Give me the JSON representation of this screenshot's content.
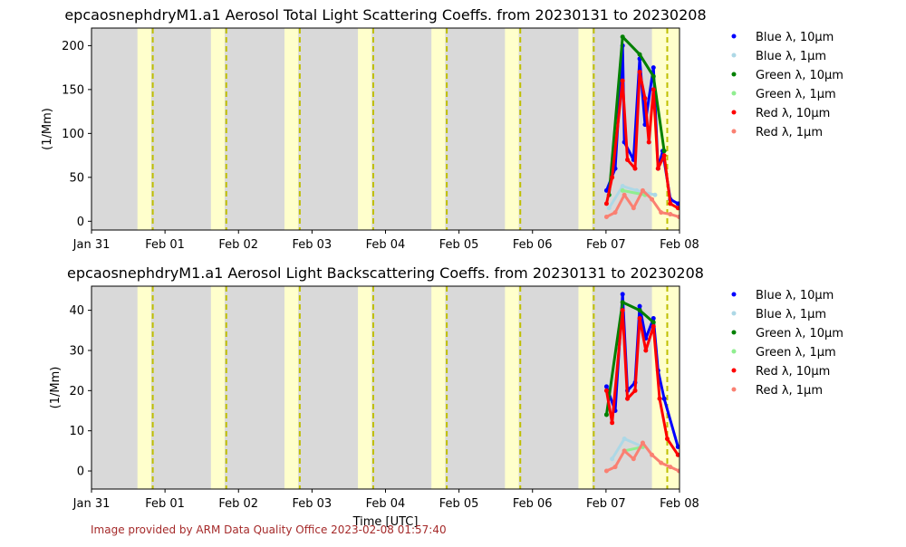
{
  "figure": {
    "credit": "Image provided by ARM Data Quality Office 2023-02-08 01:57:40",
    "xlabel": "Time [UTC]"
  },
  "chart_data": [
    {
      "type": "scatter",
      "title": "epcaosnephdryM1.a1 Aerosol Total Light Scattering Coeffs. from 20230131 to 20230208",
      "xlabel": "",
      "ylabel": "(1/Mm)",
      "x_ticks": [
        "Jan 31",
        "Feb 01",
        "Feb 02",
        "Feb 03",
        "Feb 04",
        "Feb 05",
        "Feb 06",
        "Feb 07",
        "Feb 08"
      ],
      "xlim": [
        "2023-01-31",
        "2023-02-08"
      ],
      "ylim": [
        -10,
        220
      ],
      "y_ticks": [
        0,
        50,
        100,
        150,
        200
      ],
      "legend": "outside-right",
      "series": [
        {
          "name": "Blue λ, 10μm",
          "color": "#0000ff",
          "x": [
            "2023-02-07 00:10",
            "2023-02-07 03:00",
            "2023-02-07 05:25",
            "2023-02-07 06:00",
            "2023-02-07 09:00",
            "2023-02-07 11:00",
            "2023-02-07 12:45",
            "2023-02-07 15:30",
            "2023-02-07 17:00",
            "2023-02-07 18:30",
            "2023-02-07 21:00",
            "2023-02-07 23:30"
          ],
          "values": [
            35,
            60,
            200,
            90,
            70,
            185,
            110,
            175,
            60,
            80,
            25,
            20
          ]
        },
        {
          "name": "Blue λ, 1μm",
          "color": "#add8e6",
          "x": [
            "2023-02-07 01:00",
            "2023-02-07 05:25",
            "2023-02-07 10:00",
            "2023-02-07 16:00"
          ],
          "values": [
            15,
            40,
            35,
            30
          ]
        },
        {
          "name": "Green λ, 10μm",
          "color": "#008000",
          "x": [
            "2023-02-07 01:00",
            "2023-02-07 05:25",
            "2023-02-07 11:00",
            "2023-02-07 15:30",
            "2023-02-07 19:00"
          ],
          "values": [
            30,
            210,
            190,
            165,
            80
          ]
        },
        {
          "name": "Green λ, 1μm",
          "color": "#90ee90",
          "x": [
            "2023-02-07 05:25",
            "2023-02-07 12:45"
          ],
          "values": [
            35,
            30
          ]
        },
        {
          "name": "Red λ, 10μm",
          "color": "#ff0000",
          "x": [
            "2023-02-07 00:10",
            "2023-02-07 02:00",
            "2023-02-07 05:25",
            "2023-02-07 07:00",
            "2023-02-07 09:30",
            "2023-02-07 11:00",
            "2023-02-07 12:45",
            "2023-02-07 14:00",
            "2023-02-07 15:30",
            "2023-02-07 17:00",
            "2023-02-07 19:00",
            "2023-02-07 21:00",
            "2023-02-07 23:30"
          ],
          "values": [
            20,
            50,
            160,
            70,
            60,
            170,
            140,
            90,
            150,
            60,
            75,
            20,
            15
          ]
        },
        {
          "name": "Red λ, 1μm",
          "color": "#fa8072",
          "x": [
            "2023-02-07 00:10",
            "2023-02-07 03:00",
            "2023-02-07 06:00",
            "2023-02-07 09:00",
            "2023-02-07 12:00",
            "2023-02-07 15:00",
            "2023-02-07 18:00",
            "2023-02-07 21:00",
            "2023-02-07 23:50"
          ],
          "values": [
            5,
            10,
            30,
            15,
            35,
            25,
            10,
            8,
            5
          ]
        }
      ]
    },
    {
      "type": "scatter",
      "title": "epcaosnephdryM1.a1 Aerosol Light Backscattering Coeffs. from 20230131 to 20230208",
      "xlabel": "Time [UTC]",
      "ylabel": "(1/Mm)",
      "x_ticks": [
        "Jan 31",
        "Feb 01",
        "Feb 02",
        "Feb 03",
        "Feb 04",
        "Feb 05",
        "Feb 06",
        "Feb 07",
        "Feb 08"
      ],
      "xlim": [
        "2023-01-31",
        "2023-02-08"
      ],
      "ylim": [
        -4.5,
        46
      ],
      "y_ticks": [
        0,
        10,
        20,
        30,
        40
      ],
      "legend": "outside-right",
      "series": [
        {
          "name": "Blue λ, 10μm",
          "color": "#0000ff",
          "x": [
            "2023-02-07 00:10",
            "2023-02-07 03:00",
            "2023-02-07 05:25",
            "2023-02-07 07:00",
            "2023-02-07 09:30",
            "2023-02-07 11:00",
            "2023-02-07 13:00",
            "2023-02-07 15:30",
            "2023-02-07 17:00",
            "2023-02-07 19:00",
            "2023-02-07 23:30"
          ],
          "values": [
            21,
            15,
            44,
            20,
            22,
            41,
            33,
            38,
            25,
            18,
            6
          ]
        },
        {
          "name": "Blue λ, 1μm",
          "color": "#add8e6",
          "x": [
            "2023-02-07 02:00",
            "2023-02-07 06:00",
            "2023-02-07 12:00"
          ],
          "values": [
            3,
            8,
            6
          ]
        },
        {
          "name": "Green λ, 10μm",
          "color": "#008000",
          "x": [
            "2023-02-07 00:10",
            "2023-02-07 05:25",
            "2023-02-07 11:00",
            "2023-02-07 15:30"
          ],
          "values": [
            14,
            42,
            40,
            37
          ]
        },
        {
          "name": "Green λ, 1μm",
          "color": "#90ee90",
          "x": [
            "2023-02-07 06:00",
            "2023-02-07 12:00"
          ],
          "values": [
            5,
            6
          ]
        },
        {
          "name": "Red λ, 10μm",
          "color": "#ff0000",
          "x": [
            "2023-02-07 00:10",
            "2023-02-07 02:00",
            "2023-02-07 05:25",
            "2023-02-07 07:00",
            "2023-02-07 09:30",
            "2023-02-07 11:00",
            "2023-02-07 13:00",
            "2023-02-07 15:30",
            "2023-02-07 17:30",
            "2023-02-07 20:00",
            "2023-02-07 23:30"
          ],
          "values": [
            20,
            12,
            40,
            18,
            20,
            38,
            30,
            36,
            18,
            8,
            4
          ]
        },
        {
          "name": "Red λ, 1μm",
          "color": "#fa8072",
          "x": [
            "2023-02-07 00:10",
            "2023-02-07 03:00",
            "2023-02-07 06:00",
            "2023-02-07 09:00",
            "2023-02-07 12:00",
            "2023-02-07 15:00",
            "2023-02-07 18:00",
            "2023-02-07 21:00",
            "2023-02-07 23:50"
          ],
          "values": [
            0,
            1,
            5,
            3,
            7,
            4,
            2,
            1,
            0
          ]
        }
      ]
    }
  ],
  "background": {
    "night_color": "#d9d9d9",
    "day_color": "#ffffcc",
    "noon_line_color": "#bfbf00",
    "day_bands": [
      [
        "2023-01-31 15:00",
        "2023-01-31 19:30"
      ],
      [
        "2023-02-01 15:00",
        "2023-02-01 19:30"
      ],
      [
        "2023-02-02 15:00",
        "2023-02-02 19:30"
      ],
      [
        "2023-02-03 15:00",
        "2023-02-03 19:30"
      ],
      [
        "2023-02-04 15:00",
        "2023-02-04 19:30"
      ],
      [
        "2023-02-05 15:00",
        "2023-02-05 19:30"
      ],
      [
        "2023-02-06 15:00",
        "2023-02-06 19:30"
      ],
      [
        "2023-02-07 15:00",
        "2023-02-08 00:00"
      ]
    ],
    "noon_lines": [
      "2023-01-31 20:00",
      "2023-02-01 20:00",
      "2023-02-02 20:00",
      "2023-02-03 20:00",
      "2023-02-04 20:00",
      "2023-02-05 20:00",
      "2023-02-06 20:00",
      "2023-02-07 20:00"
    ]
  }
}
